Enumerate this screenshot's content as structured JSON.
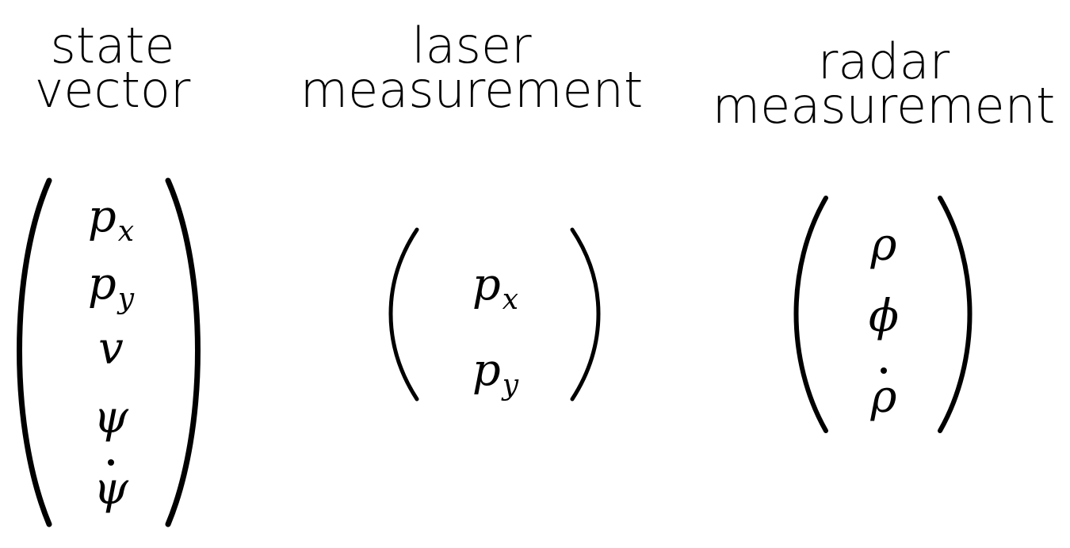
{
  "columns": {
    "state": {
      "heading": [
        "state",
        "vector"
      ],
      "entries": [
        {
          "base": "p",
          "sub": "x",
          "dot": false
        },
        {
          "base": "p",
          "sub": "y",
          "dot": false
        },
        {
          "base": "v",
          "sub": "",
          "dot": false
        },
        {
          "base": "ψ",
          "sub": "",
          "dot": false
        },
        {
          "base": "ψ",
          "sub": "",
          "dot": true
        }
      ]
    },
    "laser": {
      "heading": [
        "laser",
        "measurement"
      ],
      "entries": [
        {
          "base": "p",
          "sub": "x",
          "dot": false
        },
        {
          "base": "p",
          "sub": "y",
          "dot": false
        }
      ]
    },
    "radar": {
      "heading": [
        "radar",
        "measurement"
      ],
      "entries": [
        {
          "base": "ρ",
          "sub": "",
          "dot": false
        },
        {
          "base": "ϕ",
          "sub": "",
          "dot": false
        },
        {
          "base": "ρ",
          "sub": "",
          "dot": true
        }
      ]
    }
  }
}
